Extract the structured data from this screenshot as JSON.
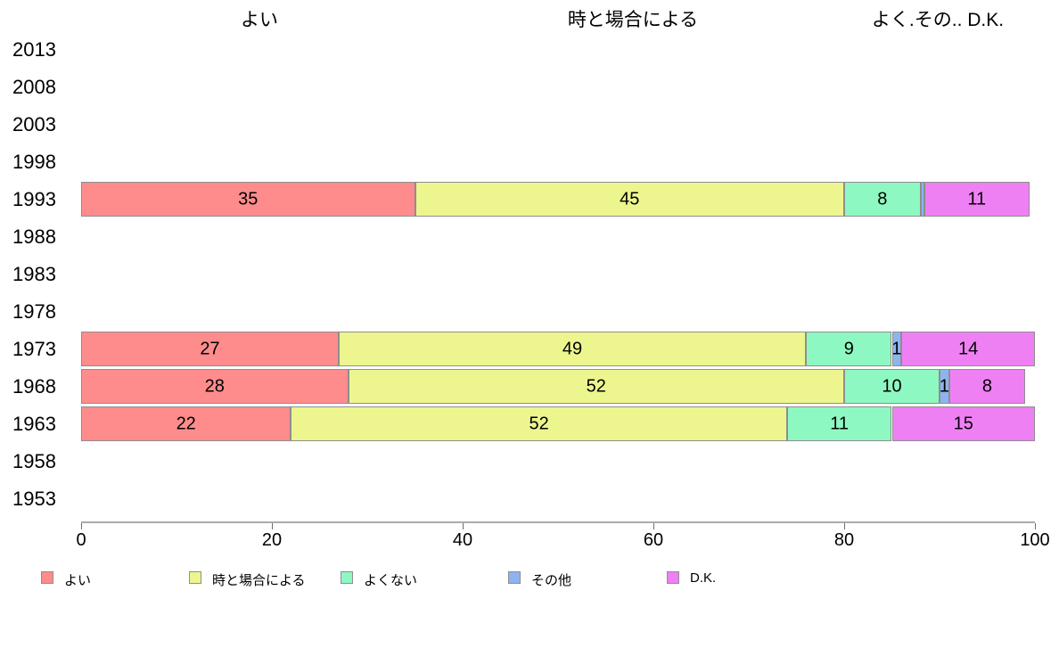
{
  "column_headers": {
    "h1": "よい",
    "h2": "時と場合による",
    "h3": "よく.その.. D.K."
  },
  "x_axis": {
    "ticks": [
      "0",
      "20",
      "40",
      "60",
      "80",
      "100"
    ]
  },
  "legend": {
    "items": [
      {
        "label": "よい"
      },
      {
        "label": "時と場合による"
      },
      {
        "label": "よくない"
      },
      {
        "label": "その他"
      },
      {
        "label": "D.K."
      }
    ]
  },
  "colors": {
    "segment_border": "#8E8E8E",
    "axis_line": "#ABABAB",
    "tick": "#6E6E6E",
    "text": "#000000"
  },
  "chart_data": {
    "type": "bar",
    "orientation": "horizontal",
    "stacked": true,
    "title": "",
    "xlabel": "",
    "ylabel": "",
    "xlim": [
      0,
      100
    ],
    "x_ticks": [
      0,
      20,
      40,
      60,
      80,
      100
    ],
    "grid": false,
    "legend_position": "bottom",
    "column_headers": [
      "よい",
      "時と場合による",
      "よく.その.. D.K."
    ],
    "categories": [
      "2013",
      "2008",
      "2003",
      "1998",
      "1993",
      "1988",
      "1983",
      "1978",
      "1973",
      "1968",
      "1963",
      "1958",
      "1953"
    ],
    "series": [
      {
        "name": "よい",
        "color": "#FF8C8C",
        "values": [
          null,
          null,
          null,
          null,
          35,
          null,
          null,
          null,
          27,
          28,
          22,
          null,
          null
        ]
      },
      {
        "name": "時と場合による",
        "color": "#EDF68E",
        "values": [
          null,
          null,
          null,
          null,
          45,
          null,
          null,
          null,
          49,
          52,
          52,
          null,
          null
        ]
      },
      {
        "name": "よくない",
        "color": "#8EF8C2",
        "values": [
          null,
          null,
          null,
          null,
          8,
          null,
          null,
          null,
          9,
          10,
          11,
          null,
          null
        ]
      },
      {
        "name": "その他",
        "color": "#8DB4F1",
        "values": [
          null,
          null,
          null,
          null,
          0.4,
          null,
          null,
          null,
          1,
          1,
          0,
          null,
          null
        ]
      },
      {
        "name": "D.K.",
        "color": "#EF80F4",
        "values": [
          null,
          null,
          null,
          null,
          11,
          null,
          null,
          null,
          14,
          8,
          15,
          null,
          null
        ]
      }
    ],
    "value_labels": "shown inside segments, hidden when value rounds below 1"
  }
}
